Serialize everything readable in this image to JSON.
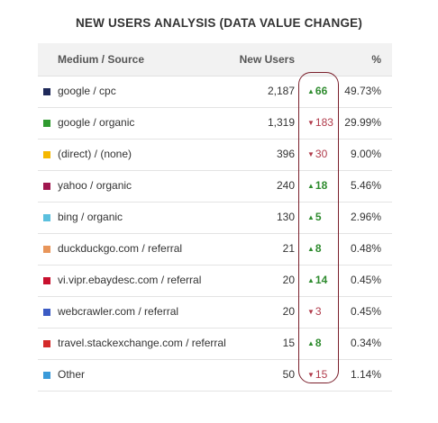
{
  "title": "NEW USERS ANALYSIS (DATA VALUE CHANGE)",
  "columns": {
    "medium": "Medium / Source",
    "new_users": "New Users",
    "pct": "%"
  },
  "rows": [
    {
      "medium": "google / cpc",
      "color": "#1f2a5a",
      "new_users": "2,187",
      "delta": "66",
      "direction": "up",
      "pct": "49.73%"
    },
    {
      "medium": "google / organic",
      "color": "#2e9a2e",
      "new_users": "1,319",
      "delta": "183",
      "direction": "down",
      "pct": "29.99%"
    },
    {
      "medium": "(direct) / (none)",
      "color": "#f5b800",
      "new_users": "396",
      "delta": "30",
      "direction": "down",
      "pct": "9.00%"
    },
    {
      "medium": "yahoo / organic",
      "color": "#a0174f",
      "new_users": "240",
      "delta": "18",
      "direction": "up",
      "pct": "5.46%"
    },
    {
      "medium": "bing / organic",
      "color": "#5bc0de",
      "new_users": "130",
      "delta": "5",
      "direction": "up",
      "pct": "2.96%"
    },
    {
      "medium": "duckduckgo.com / referral",
      "color": "#e8955a",
      "new_users": "21",
      "delta": "8",
      "direction": "up",
      "pct": "0.48%"
    },
    {
      "medium": "vi.vipr.ebaydesc.com / referral",
      "color": "#c8102e",
      "new_users": "20",
      "delta": "14",
      "direction": "up",
      "pct": "0.45%"
    },
    {
      "medium": "webcrawler.com / referral",
      "color": "#3b5bc4",
      "new_users": "20",
      "delta": "3",
      "direction": "down",
      "pct": "0.45%"
    },
    {
      "medium": "travel.stackexchange.com / referral",
      "color": "#d42a2a",
      "new_users": "15",
      "delta": "8",
      "direction": "up",
      "pct": "0.34%"
    },
    {
      "medium": "Other",
      "color": "#3a9ad9",
      "new_users": "50",
      "delta": "15",
      "direction": "down",
      "pct": "1.14%"
    }
  ]
}
